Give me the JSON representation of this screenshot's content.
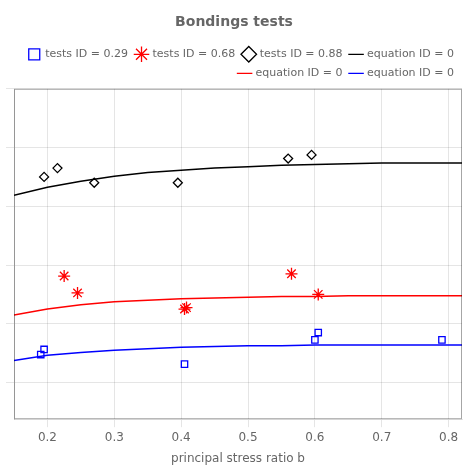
{
  "chart_data": {
    "type": "scatter",
    "title": "Bondings tests",
    "x_label": "principal stress ratio b",
    "xlim": [
      0.15,
      0.82
    ],
    "xticks": [
      0.2,
      0.3,
      0.4,
      0.5,
      0.6,
      0.7,
      0.8
    ],
    "ylim": [
      0.05,
      0.5
    ],
    "yticks": [
      0.1,
      0.18,
      0.26,
      0.34,
      0.42,
      0.5
    ],
    "tick_labels": "x",
    "grid": true,
    "legend": "upper right",
    "series": [
      {
        "name": "tests ID = 0.29",
        "type": "scatter",
        "marker": "square",
        "color": "blue",
        "x": [
          0.19,
          0.195,
          0.405,
          0.6,
          0.605,
          0.79
        ],
        "values": [
          0.138,
          0.145,
          0.125,
          0.158,
          0.168,
          0.158
        ]
      },
      {
        "name": "tests ID = 0.68",
        "type": "scatter",
        "marker": "star",
        "color": "red",
        "x": [
          0.225,
          0.245,
          0.405,
          0.408,
          0.565,
          0.605
        ],
        "values": [
          0.245,
          0.222,
          0.2,
          0.202,
          0.248,
          0.22
        ]
      },
      {
        "name": "tests ID = 0.88",
        "type": "scatter",
        "marker": "diamond",
        "color": "black",
        "x": [
          0.195,
          0.215,
          0.27,
          0.395,
          0.56,
          0.595
        ],
        "values": [
          0.38,
          0.392,
          0.372,
          0.372,
          0.405,
          0.41
        ]
      },
      {
        "name": "equation ID = 0",
        "type": "line",
        "line_style": "solid",
        "color": "black",
        "x": [
          0.15,
          0.2,
          0.25,
          0.3,
          0.35,
          0.4,
          0.45,
          0.5,
          0.55,
          0.6,
          0.65,
          0.7,
          0.75,
          0.82
        ],
        "values": [
          0.355,
          0.366,
          0.374,
          0.381,
          0.386,
          0.389,
          0.392,
          0.394,
          0.396,
          0.397,
          0.398,
          0.399,
          0.399,
          0.399
        ]
      },
      {
        "name": "equation ID = 0",
        "type": "line",
        "line_style": "solid",
        "color": "red",
        "x": [
          0.15,
          0.2,
          0.25,
          0.3,
          0.35,
          0.4,
          0.45,
          0.5,
          0.55,
          0.6,
          0.65,
          0.7,
          0.75,
          0.82
        ],
        "values": [
          0.192,
          0.2,
          0.206,
          0.21,
          0.212,
          0.214,
          0.215,
          0.216,
          0.217,
          0.217,
          0.218,
          0.218,
          0.218,
          0.218
        ]
      },
      {
        "name": "equation ID = 0",
        "type": "line",
        "line_style": "solid",
        "color": "blue",
        "x": [
          0.15,
          0.2,
          0.25,
          0.3,
          0.35,
          0.4,
          0.45,
          0.5,
          0.55,
          0.6,
          0.65,
          0.7,
          0.75,
          0.82
        ],
        "values": [
          0.13,
          0.137,
          0.141,
          0.144,
          0.146,
          0.148,
          0.149,
          0.15,
          0.15,
          0.151,
          0.151,
          0.151,
          0.151,
          0.151
        ]
      }
    ]
  }
}
